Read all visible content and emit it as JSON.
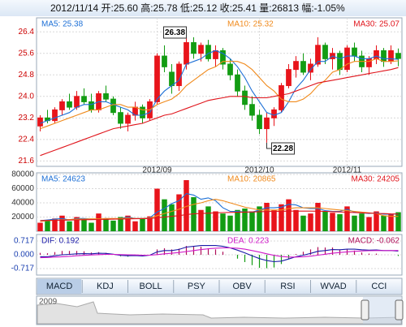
{
  "header": "2012/11/14 开:25.60 高:25.78 低:25.12 收:25.41 量:26813 幅:-1.05%",
  "tabs": [
    "MACD",
    "KDJ",
    "BOLL",
    "PSY",
    "OBV",
    "RSI",
    "WVAD",
    "CCI"
  ],
  "navigator": {
    "label": "2009"
  },
  "chart_data": [
    {
      "type": "candlestick",
      "up_color": "#e8141b",
      "down_color": "#139c13",
      "tick_color": "#cc0000",
      "grid": true,
      "categories": [
        null,
        null,
        null,
        null,
        null,
        null,
        null,
        null,
        null,
        null,
        null,
        null,
        null,
        null,
        null,
        null,
        "2012/09",
        null,
        null,
        null,
        null,
        null,
        null,
        null,
        null,
        null,
        null,
        null,
        null,
        null,
        "2012/10",
        null,
        null,
        null,
        null,
        null,
        null,
        null,
        null,
        null,
        null,
        null,
        "2012/11",
        null,
        null,
        null,
        null,
        null,
        null,
        null
      ],
      "open": [
        22.9,
        23.2,
        23.1,
        23.5,
        23.8,
        23.6,
        24.0,
        23.8,
        23.5,
        24.1,
        23.9,
        23.4,
        23.0,
        23.3,
        23.6,
        23.2,
        23.8,
        25.5,
        24.9,
        24.4,
        25.2,
        26.0,
        25.6,
        25.9,
        25.4,
        25.7,
        25.2,
        24.8,
        24.2,
        23.7,
        23.3,
        22.8,
        23.2,
        23.5,
        24.4,
        25.0,
        25.3,
        24.9,
        25.2,
        25.9,
        25.4,
        25.6,
        25.0,
        25.8,
        25.5,
        25.1,
        25.4,
        25.7,
        25.3,
        25.6
      ],
      "high": [
        23.3,
        23.5,
        23.6,
        23.9,
        24.1,
        24.2,
        24.3,
        24.1,
        24.2,
        24.4,
        24.0,
        23.6,
        23.4,
        23.8,
        23.7,
        23.9,
        25.6,
        25.9,
        25.2,
        25.3,
        26.38,
        26.2,
        26.0,
        26.1,
        25.9,
        25.8,
        25.4,
        25.0,
        24.4,
        24.0,
        23.5,
        23.4,
        23.6,
        24.5,
        25.2,
        25.5,
        25.6,
        25.4,
        26.2,
        26.0,
        25.8,
        25.7,
        25.9,
        26.0,
        25.7,
        25.5,
        25.9,
        25.8,
        25.9,
        25.78
      ],
      "low": [
        22.7,
        23.0,
        23.0,
        23.3,
        23.5,
        23.5,
        23.7,
        23.4,
        23.4,
        23.8,
        23.3,
        22.8,
        22.7,
        23.1,
        23.0,
        23.1,
        23.7,
        24.9,
        24.1,
        24.2,
        25.0,
        25.4,
        25.3,
        25.3,
        25.1,
        25.0,
        24.6,
        24.0,
        23.5,
        23.1,
        22.6,
        22.28,
        22.9,
        23.4,
        24.3,
        24.7,
        24.8,
        24.6,
        25.1,
        25.2,
        25.0,
        24.8,
        24.9,
        25.3,
        24.9,
        24.8,
        25.2,
        25.1,
        25.2,
        25.12
      ],
      "close": [
        23.2,
        23.1,
        23.5,
        23.8,
        23.6,
        24.0,
        23.8,
        23.5,
        24.1,
        23.9,
        23.4,
        23.0,
        23.3,
        23.6,
        23.2,
        23.8,
        25.5,
        25.1,
        24.4,
        25.2,
        26.0,
        25.6,
        25.9,
        25.4,
        25.7,
        25.2,
        24.8,
        24.2,
        23.7,
        23.3,
        22.8,
        23.2,
        23.5,
        24.4,
        25.0,
        25.3,
        24.9,
        25.2,
        25.9,
        25.4,
        25.6,
        25.0,
        25.8,
        25.5,
        25.1,
        25.4,
        25.7,
        25.3,
        25.7,
        25.41
      ],
      "series": [
        {
          "name": "MA5: 25.38",
          "color": "#1c6fd6",
          "values": [
            23.0,
            23.1,
            23.2,
            23.3,
            23.4,
            23.6,
            23.7,
            23.7,
            23.8,
            23.8,
            23.7,
            23.6,
            23.5,
            23.3,
            23.3,
            23.4,
            23.9,
            24.2,
            24.4,
            24.6,
            25.2,
            25.3,
            25.4,
            25.6,
            25.7,
            25.6,
            25.4,
            25.1,
            24.7,
            24.2,
            23.8,
            23.4,
            23.3,
            23.4,
            23.8,
            24.3,
            24.6,
            25.0,
            25.3,
            25.3,
            25.5,
            25.4,
            25.5,
            25.5,
            25.4,
            25.4,
            25.5,
            25.4,
            25.4,
            25.38
          ]
        },
        {
          "name": "MA10: 25.32",
          "color": "#f08a1c",
          "values": [
            22.8,
            22.9,
            23.0,
            23.1,
            23.2,
            23.3,
            23.4,
            23.5,
            23.5,
            23.6,
            23.7,
            23.7,
            23.6,
            23.6,
            23.5,
            23.5,
            23.7,
            23.8,
            23.9,
            24.1,
            24.4,
            24.6,
            24.8,
            25.0,
            25.1,
            25.3,
            25.3,
            25.3,
            25.2,
            25.0,
            24.7,
            24.4,
            24.2,
            23.9,
            23.8,
            23.8,
            23.9,
            24.1,
            24.4,
            24.6,
            24.9,
            25.0,
            25.2,
            25.3,
            25.3,
            25.3,
            25.4,
            25.3,
            25.3,
            25.32
          ]
        },
        {
          "name": "MA30: 25.07",
          "color": "#e0141b",
          "values": [
            21.8,
            21.9,
            22.0,
            22.1,
            22.2,
            22.3,
            22.4,
            22.5,
            22.6,
            22.7,
            22.8,
            22.85,
            22.9,
            22.95,
            23.0,
            23.1,
            23.2,
            23.3,
            23.35,
            23.45,
            23.55,
            23.65,
            23.75,
            23.85,
            23.9,
            23.95,
            24.0,
            24.0,
            24.0,
            23.95,
            23.95,
            23.95,
            24.0,
            24.05,
            24.1,
            24.2,
            24.3,
            24.4,
            24.5,
            24.55,
            24.6,
            24.65,
            24.7,
            24.75,
            24.8,
            24.85,
            24.9,
            24.95,
            25.0,
            25.07
          ]
        }
      ],
      "annotations": [
        "26.38",
        "22.28"
      ],
      "ylim": [
        21.4,
        26.92
      ],
      "yticks": [
        26.4,
        25.6,
        24.8,
        {
          "value": 24,
          "label": "24.0"
        },
        23.2,
        22.4,
        21.6
      ]
    },
    {
      "type": "bar",
      "tick_color": "#333333",
      "grid": true,
      "values": [
        12000,
        15000,
        18000,
        22000,
        14000,
        20000,
        16000,
        12000,
        25000,
        18000,
        15000,
        20000,
        22000,
        14000,
        18000,
        21000,
        60000,
        45000,
        38000,
        52000,
        72000,
        48000,
        30000,
        35000,
        28000,
        25000,
        22000,
        30000,
        32000,
        28000,
        35000,
        40000,
        30000,
        38000,
        45000,
        30000,
        22000,
        25000,
        40000,
        28000,
        26000,
        24000,
        35000,
        22000,
        25000,
        20000,
        28000,
        22000,
        24000,
        26813
      ],
      "series": [
        {
          "name": "MA5: 24623",
          "color": "#1c6fd6",
          "values": [
            15000,
            16000,
            17000,
            18000,
            16000,
            18000,
            18000,
            17000,
            17000,
            18000,
            17000,
            18000,
            20000,
            18000,
            18000,
            19000,
            27000,
            32000,
            39000,
            43000,
            53000,
            51000,
            45000,
            47000,
            43000,
            33000,
            28000,
            28000,
            27000,
            27000,
            30000,
            33000,
            33000,
            34000,
            38000,
            37000,
            33000,
            32000,
            32000,
            29000,
            28000,
            28000,
            31000,
            27000,
            26000,
            25000,
            26000,
            24000,
            24000,
            24623
          ]
        },
        {
          "name": "MA10: 20865",
          "color": "#f08a1c",
          "values": [
            14000,
            15000,
            15500,
            16000,
            16500,
            17000,
            17000,
            17500,
            17500,
            18000,
            18000,
            18000,
            18500,
            18000,
            18000,
            18500,
            22000,
            25000,
            28000,
            31000,
            35000,
            38000,
            40000,
            43000,
            45000,
            43000,
            40000,
            37000,
            34000,
            32000,
            30000,
            30000,
            30000,
            30000,
            32000,
            33000,
            33000,
            33000,
            33000,
            32000,
            31000,
            30000,
            29000,
            28000,
            27000,
            26000,
            25000,
            22000,
            21000,
            20865
          ]
        },
        {
          "name": "MA30: 24205",
          "color": "#e0141b",
          "values": [
            15000,
            15200,
            15400,
            15600,
            15800,
            16000,
            16200,
            16400,
            16600,
            16800,
            17000,
            17200,
            17400,
            17600,
            17800,
            18000,
            19000,
            20000,
            21000,
            22000,
            23500,
            24500,
            25000,
            25500,
            26000,
            26300,
            26500,
            26800,
            27000,
            27200,
            27500,
            27800,
            28000,
            28100,
            28300,
            28400,
            28400,
            28300,
            28200,
            28000,
            27600,
            27200,
            26800,
            26400,
            26000,
            25600,
            25200,
            24900,
            24500,
            24205
          ]
        }
      ],
      "ylim": [
        0,
        82300
      ],
      "yticks": [
        80000,
        60000,
        40000,
        20000
      ]
    },
    {
      "type": "macd",
      "tick_color": "#1a3fb0",
      "grid": true,
      "up_color": "#b0105a",
      "down_color": "#139c13",
      "bars": {
        "name": "MACD: -0.062",
        "values": [
          0.1,
          0.08,
          0.14,
          0.2,
          0.2,
          0.2,
          0.18,
          0.12,
          0.14,
          0.1,
          0.02,
          -0.08,
          -0.1,
          -0.06,
          -0.08,
          0,
          0.28,
          0.34,
          0.28,
          0.32,
          0.46,
          0.44,
          0.42,
          0.34,
          0.28,
          0.16,
          0,
          -0.2,
          -0.38,
          -0.54,
          -0.68,
          -0.7,
          -0.66,
          -0.48,
          -0.2,
          0.04,
          0.16,
          0.28,
          0.4,
          0.38,
          0.38,
          0.28,
          0.28,
          0.22,
          0.12,
          0.06,
          0.06,
          0,
          0,
          -0.062
        ]
      },
      "series": [
        {
          "name": "DIF: 0.192",
          "color": "#1a1aa8",
          "values": [
            -0.1,
            -0.1,
            -0.05,
            0,
            0.02,
            0.05,
            0.06,
            0.05,
            0.08,
            0.07,
            0.03,
            -0.03,
            -0.05,
            -0.04,
            -0.06,
            -0.02,
            0.15,
            0.22,
            0.22,
            0.28,
            0.4,
            0.44,
            0.48,
            0.48,
            0.48,
            0.44,
            0.36,
            0.24,
            0.1,
            -0.05,
            -0.2,
            -0.3,
            -0.36,
            -0.33,
            -0.22,
            -0.1,
            -0.02,
            0.07,
            0.18,
            0.22,
            0.27,
            0.26,
            0.29,
            0.29,
            0.26,
            0.24,
            0.25,
            0.22,
            0.22,
            0.192
          ]
        },
        {
          "name": "DEA: 0.223",
          "color": "#d018c8",
          "values": [
            -0.15,
            -0.14,
            -0.12,
            -0.1,
            -0.08,
            -0.05,
            -0.03,
            -0.01,
            0.01,
            0.02,
            0.02,
            0.01,
            0,
            -0.01,
            -0.02,
            -0.02,
            0.01,
            0.05,
            0.08,
            0.12,
            0.17,
            0.22,
            0.27,
            0.31,
            0.34,
            0.36,
            0.36,
            0.34,
            0.29,
            0.22,
            0.14,
            0.05,
            -0.03,
            -0.09,
            -0.12,
            -0.12,
            -0.1,
            -0.07,
            -0.02,
            0.03,
            0.08,
            0.12,
            0.15,
            0.18,
            0.2,
            0.21,
            0.22,
            0.22,
            0.22,
            0.223
          ]
        }
      ],
      "ylim": [
        -1.054,
        1.054
      ],
      "yticks": [
        0.717,
        {
          "value": 0,
          "label": "0.000"
        },
        -0.717
      ]
    }
  ]
}
